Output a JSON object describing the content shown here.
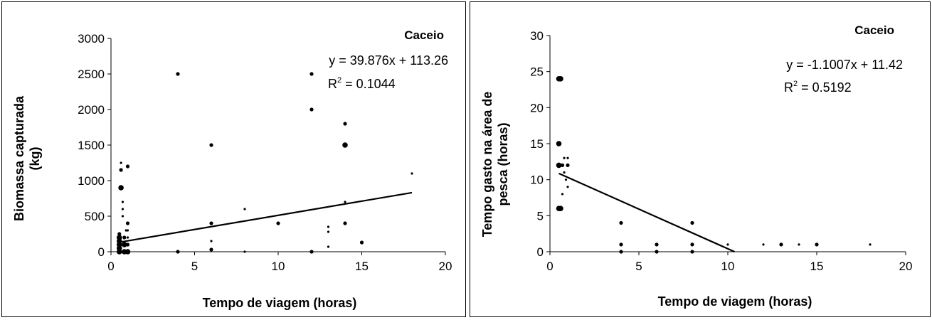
{
  "chart_data": [
    {
      "type": "scatter",
      "site_label": "Caceio",
      "xlabel": "Tempo de viagem (horas)",
      "ylabel_lines": [
        "Biomassa capturada",
        "(kg)"
      ],
      "xlim": [
        0,
        20
      ],
      "ylim": [
        0,
        3000
      ],
      "xticks": [
        "0",
        "5",
        "10",
        "15",
        "20"
      ],
      "yticks": [
        "0",
        "500",
        "1000",
        "1500",
        "2000",
        "2500",
        "3000"
      ],
      "equation": "y = 39.876x + 113.26",
      "r2_label": "R",
      "r2_sup": "2",
      "r2_value": " = 0.1044",
      "trendline": {
        "x_start": 0.5,
        "x_end": 18,
        "slope": 39.876,
        "intercept": 113.26
      },
      "points": [
        {
          "x": 0.5,
          "y": 0,
          "size": "large"
        },
        {
          "x": 0.5,
          "y": 50,
          "size": "large"
        },
        {
          "x": 0.5,
          "y": 100,
          "size": "large"
        },
        {
          "x": 0.5,
          "y": 150,
          "size": "large"
        },
        {
          "x": 0.5,
          "y": 200,
          "size": "large"
        },
        {
          "x": 0.5,
          "y": 250,
          "size": "medium"
        },
        {
          "x": 0.6,
          "y": 900,
          "size": "large"
        },
        {
          "x": 0.6,
          "y": 1150,
          "size": "medium"
        },
        {
          "x": 0.6,
          "y": 1250,
          "size": "small"
        },
        {
          "x": 0.7,
          "y": 600,
          "size": "small"
        },
        {
          "x": 0.7,
          "y": 700,
          "size": "small"
        },
        {
          "x": 0.7,
          "y": 500,
          "size": "small"
        },
        {
          "x": 0.8,
          "y": 0,
          "size": "large"
        },
        {
          "x": 0.8,
          "y": 100,
          "size": "large"
        },
        {
          "x": 0.8,
          "y": 200,
          "size": "medium"
        },
        {
          "x": 0.9,
          "y": 300,
          "size": "small"
        },
        {
          "x": 1.0,
          "y": 1200,
          "size": "medium"
        },
        {
          "x": 1.0,
          "y": 400,
          "size": "medium"
        },
        {
          "x": 1.0,
          "y": 300,
          "size": "small"
        },
        {
          "x": 1.0,
          "y": 200,
          "size": "small"
        },
        {
          "x": 1.0,
          "y": 100,
          "size": "medium"
        },
        {
          "x": 1.0,
          "y": 0,
          "size": "large"
        },
        {
          "x": 4,
          "y": 2500,
          "size": "medium"
        },
        {
          "x": 4,
          "y": 0,
          "size": "medium"
        },
        {
          "x": 6,
          "y": 1500,
          "size": "medium"
        },
        {
          "x": 6,
          "y": 400,
          "size": "medium"
        },
        {
          "x": 6,
          "y": 150,
          "size": "small"
        },
        {
          "x": 6,
          "y": 30,
          "size": "medium"
        },
        {
          "x": 8,
          "y": 600,
          "size": "small"
        },
        {
          "x": 8,
          "y": 0,
          "size": "small"
        },
        {
          "x": 10,
          "y": 400,
          "size": "medium"
        },
        {
          "x": 12,
          "y": 2500,
          "size": "medium"
        },
        {
          "x": 12,
          "y": 2000,
          "size": "medium"
        },
        {
          "x": 12,
          "y": 0,
          "size": "medium"
        },
        {
          "x": 13,
          "y": 350,
          "size": "small"
        },
        {
          "x": 13,
          "y": 280,
          "size": "small"
        },
        {
          "x": 13,
          "y": 70,
          "size": "small"
        },
        {
          "x": 14,
          "y": 1800,
          "size": "medium"
        },
        {
          "x": 14,
          "y": 1500,
          "size": "large"
        },
        {
          "x": 14,
          "y": 700,
          "size": "small"
        },
        {
          "x": 14,
          "y": 400,
          "size": "medium"
        },
        {
          "x": 15,
          "y": 130,
          "size": "medium"
        },
        {
          "x": 18,
          "y": 1100,
          "size": "small"
        }
      ]
    },
    {
      "type": "scatter",
      "site_label": "Caceio",
      "xlabel": "Tempo de viagem (horas)",
      "ylabel_lines": [
        "Tempo gasto na área de",
        "pesca (horas)"
      ],
      "xlim": [
        0,
        20
      ],
      "ylim": [
        0,
        30
      ],
      "xticks": [
        "0",
        "5",
        "10",
        "15",
        "20"
      ],
      "yticks": [
        "0",
        "5",
        "10",
        "15",
        "20",
        "25",
        "30"
      ],
      "equation": "y = -1.1007x + 11.42",
      "r2_label": "R",
      "r2_sup": "2",
      "r2_value": " = 0.5192",
      "trendline": {
        "x_start": 0.5,
        "x_end": 10.38,
        "slope": -1.1007,
        "intercept": 11.42
      },
      "points": [
        {
          "x": 0.5,
          "y": 24,
          "size": "large"
        },
        {
          "x": 0.6,
          "y": 24,
          "size": "large"
        },
        {
          "x": 0.5,
          "y": 15,
          "size": "large"
        },
        {
          "x": 0.5,
          "y": 12,
          "size": "large"
        },
        {
          "x": 0.5,
          "y": 6,
          "size": "large"
        },
        {
          "x": 0.6,
          "y": 6,
          "size": "large"
        },
        {
          "x": 0.7,
          "y": 12,
          "size": "medium"
        },
        {
          "x": 0.7,
          "y": 8,
          "size": "small"
        },
        {
          "x": 0.8,
          "y": 13,
          "size": "small"
        },
        {
          "x": 0.8,
          "y": 11,
          "size": "small"
        },
        {
          "x": 0.9,
          "y": 10,
          "size": "small"
        },
        {
          "x": 1.0,
          "y": 13,
          "size": "small"
        },
        {
          "x": 1.0,
          "y": 12,
          "size": "medium"
        },
        {
          "x": 1.0,
          "y": 9,
          "size": "small"
        },
        {
          "x": 4,
          "y": 4,
          "size": "medium"
        },
        {
          "x": 4,
          "y": 1,
          "size": "medium"
        },
        {
          "x": 4,
          "y": 0,
          "size": "medium"
        },
        {
          "x": 6,
          "y": 1,
          "size": "medium"
        },
        {
          "x": 6,
          "y": 0,
          "size": "medium"
        },
        {
          "x": 8,
          "y": 4,
          "size": "medium"
        },
        {
          "x": 8,
          "y": 1,
          "size": "medium"
        },
        {
          "x": 8,
          "y": 0,
          "size": "medium"
        },
        {
          "x": 10,
          "y": 1,
          "size": "small"
        },
        {
          "x": 12,
          "y": 1,
          "size": "small"
        },
        {
          "x": 13,
          "y": 1,
          "size": "medium"
        },
        {
          "x": 14,
          "y": 1,
          "size": "small"
        },
        {
          "x": 15,
          "y": 1,
          "size": "medium"
        },
        {
          "x": 18,
          "y": 1,
          "size": "small"
        }
      ]
    }
  ]
}
